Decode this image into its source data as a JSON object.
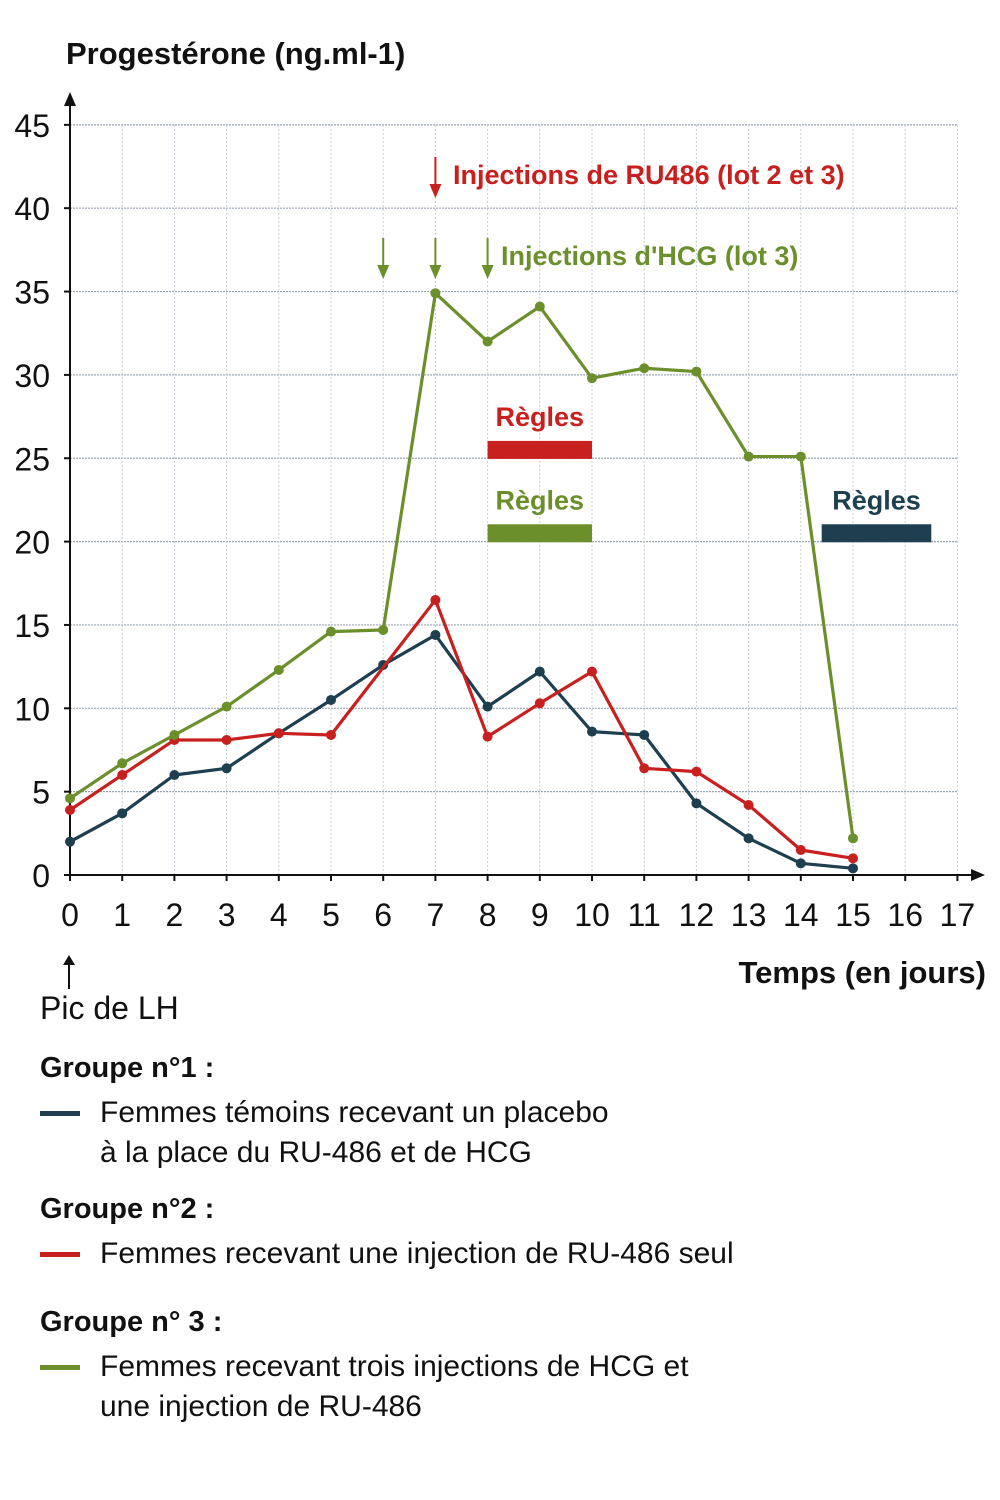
{
  "chart_data": {
    "type": "line",
    "y_axis_title": "Progestérone (ng.ml-1)",
    "x_axis_title": "Temps (en jours)",
    "xlim": [
      0,
      17
    ],
    "ylim": [
      0,
      45
    ],
    "x_ticks": [
      "0",
      "1",
      "2",
      "3",
      "4",
      "5",
      "6",
      "7",
      "8",
      "9",
      "10",
      "11",
      "12",
      "13",
      "14",
      "15",
      "16",
      "17"
    ],
    "y_ticks": [
      "0",
      "5",
      "10",
      "15",
      "20",
      "25",
      "30",
      "35",
      "40",
      "45"
    ],
    "grid": true,
    "series": [
      {
        "name": "Groupe n°1",
        "color": "#1d3f50",
        "x": [
          0,
          1,
          2,
          3,
          4,
          5,
          6,
          7,
          8,
          9,
          10,
          11,
          12,
          13,
          14,
          15
        ],
        "y": [
          2,
          3.7,
          6,
          6.4,
          8.5,
          10.5,
          12.6,
          14.4,
          10.1,
          12.2,
          8.6,
          8.4,
          4.3,
          2.2,
          0.7,
          0.4
        ]
      },
      {
        "name": "Groupe n°2",
        "color": "#c8201f",
        "x": [
          0,
          1,
          2,
          3,
          4,
          5,
          7,
          8,
          9,
          10,
          11,
          12,
          13,
          14,
          15
        ],
        "y": [
          3.9,
          6,
          8.1,
          8.1,
          8.5,
          8.4,
          16.5,
          8.3,
          10.3,
          12.2,
          6.4,
          6.2,
          4.2,
          1.5,
          1
        ]
      },
      {
        "name": "Groupe n° 3",
        "color": "#6b8f2a",
        "x": [
          0,
          1,
          2,
          3,
          4,
          5,
          6,
          7,
          8,
          9,
          10,
          11,
          12,
          13,
          14,
          15
        ],
        "y": [
          4.6,
          6.7,
          8.4,
          10.1,
          12.3,
          14.6,
          14.7,
          34.9,
          32,
          34.1,
          29.8,
          30.4,
          30.2,
          25.1,
          25.1,
          2.2
        ]
      }
    ],
    "annotations": {
      "ru486": {
        "text": "Injections de RU486 (lot 2 et 3)",
        "color": "#c8201f",
        "arrow_days": [
          7
        ]
      },
      "hcg": {
        "text": "Injections d'HCG (lot 3)",
        "color": "#6b8f2a",
        "arrow_days": [
          6,
          7,
          8
        ]
      },
      "regles": [
        {
          "label": "Règles",
          "color": "#c8201f",
          "x_start": 8,
          "x_end": 10,
          "y": 25.5
        },
        {
          "label": "Règles",
          "color": "#6b8f2a",
          "x_start": 8,
          "x_end": 10,
          "y": 20.5
        },
        {
          "label": "Règles",
          "color": "#1d3f50",
          "x_start": 14.4,
          "x_end": 16.5,
          "y": 20.5
        }
      ]
    }
  },
  "lh": {
    "label": "Pic de LH"
  },
  "legend": [
    {
      "title": "Groupe n°1 :",
      "color": "#1d3f50",
      "lines": [
        "Femmes témoins recevant un placebo",
        "à la place du RU-486 et de HCG"
      ]
    },
    {
      "title": "Groupe n°2 :",
      "color": "#c8201f",
      "lines": [
        "Femmes recevant une injection de RU-486 seul"
      ]
    },
    {
      "title": "Groupe n° 3 :",
      "color": "#6b8f2a",
      "lines": [
        "Femmes recevant trois injections de HCG et",
        "une injection de RU-486"
      ]
    }
  ]
}
